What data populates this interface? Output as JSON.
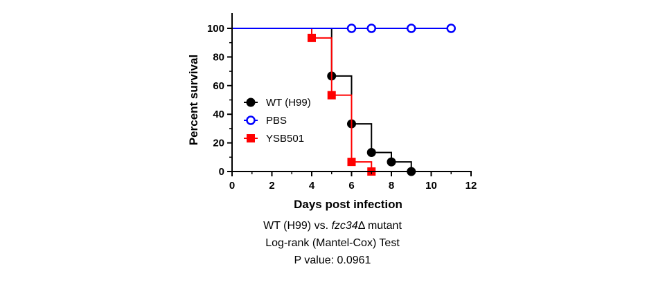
{
  "chart_data": {
    "type": "line",
    "subtype": "kaplan-meier-step",
    "xlabel": "Days post infection",
    "ylabel": "Percent survival",
    "xlim": [
      0,
      12
    ],
    "ylim": [
      0,
      100
    ],
    "xticks": [
      "0",
      "2",
      "4",
      "6",
      "8",
      "10",
      "12"
    ],
    "yticks": [
      "0",
      "20",
      "40",
      "60",
      "80",
      "100"
    ],
    "grid": false,
    "legend_placement": "left-middle",
    "series": [
      {
        "name": "WT (H99)",
        "color": "#000000",
        "marker": "filled-circle",
        "steps": [
          [
            0,
            100
          ],
          [
            5,
            66.7
          ],
          [
            6,
            33.3
          ],
          [
            7,
            13.3
          ],
          [
            8,
            6.7
          ],
          [
            9,
            0
          ]
        ],
        "markers": [
          [
            5,
            66.7
          ],
          [
            6,
            33.3
          ],
          [
            7,
            13.3
          ],
          [
            8,
            6.7
          ],
          [
            9,
            0
          ]
        ]
      },
      {
        "name": "PBS",
        "color": "#0000ff",
        "marker": "open-circle",
        "steps": [
          [
            0,
            100
          ],
          [
            11,
            100
          ]
        ],
        "markers": [
          [
            6,
            100
          ],
          [
            7,
            100
          ],
          [
            9,
            100
          ],
          [
            11,
            100
          ]
        ]
      },
      {
        "name": "YSB501",
        "color": "#ff0000",
        "marker": "filled-square",
        "steps": [
          [
            0,
            100
          ],
          [
            4,
            93.3
          ],
          [
            5,
            53.3
          ],
          [
            6,
            6.7
          ],
          [
            7,
            0
          ]
        ],
        "markers": [
          [
            4,
            93.3
          ],
          [
            5,
            53.3
          ],
          [
            6,
            6.7
          ],
          [
            7,
            0
          ]
        ]
      }
    ]
  },
  "caption": {
    "line1_prefix": "WT (H99) vs. ",
    "line1_italic": "fzc34",
    "line1_suffix": "Δ mutant",
    "line2": "Log-rank (Mantel-Cox) Test",
    "line3": "P value: 0.0961"
  }
}
